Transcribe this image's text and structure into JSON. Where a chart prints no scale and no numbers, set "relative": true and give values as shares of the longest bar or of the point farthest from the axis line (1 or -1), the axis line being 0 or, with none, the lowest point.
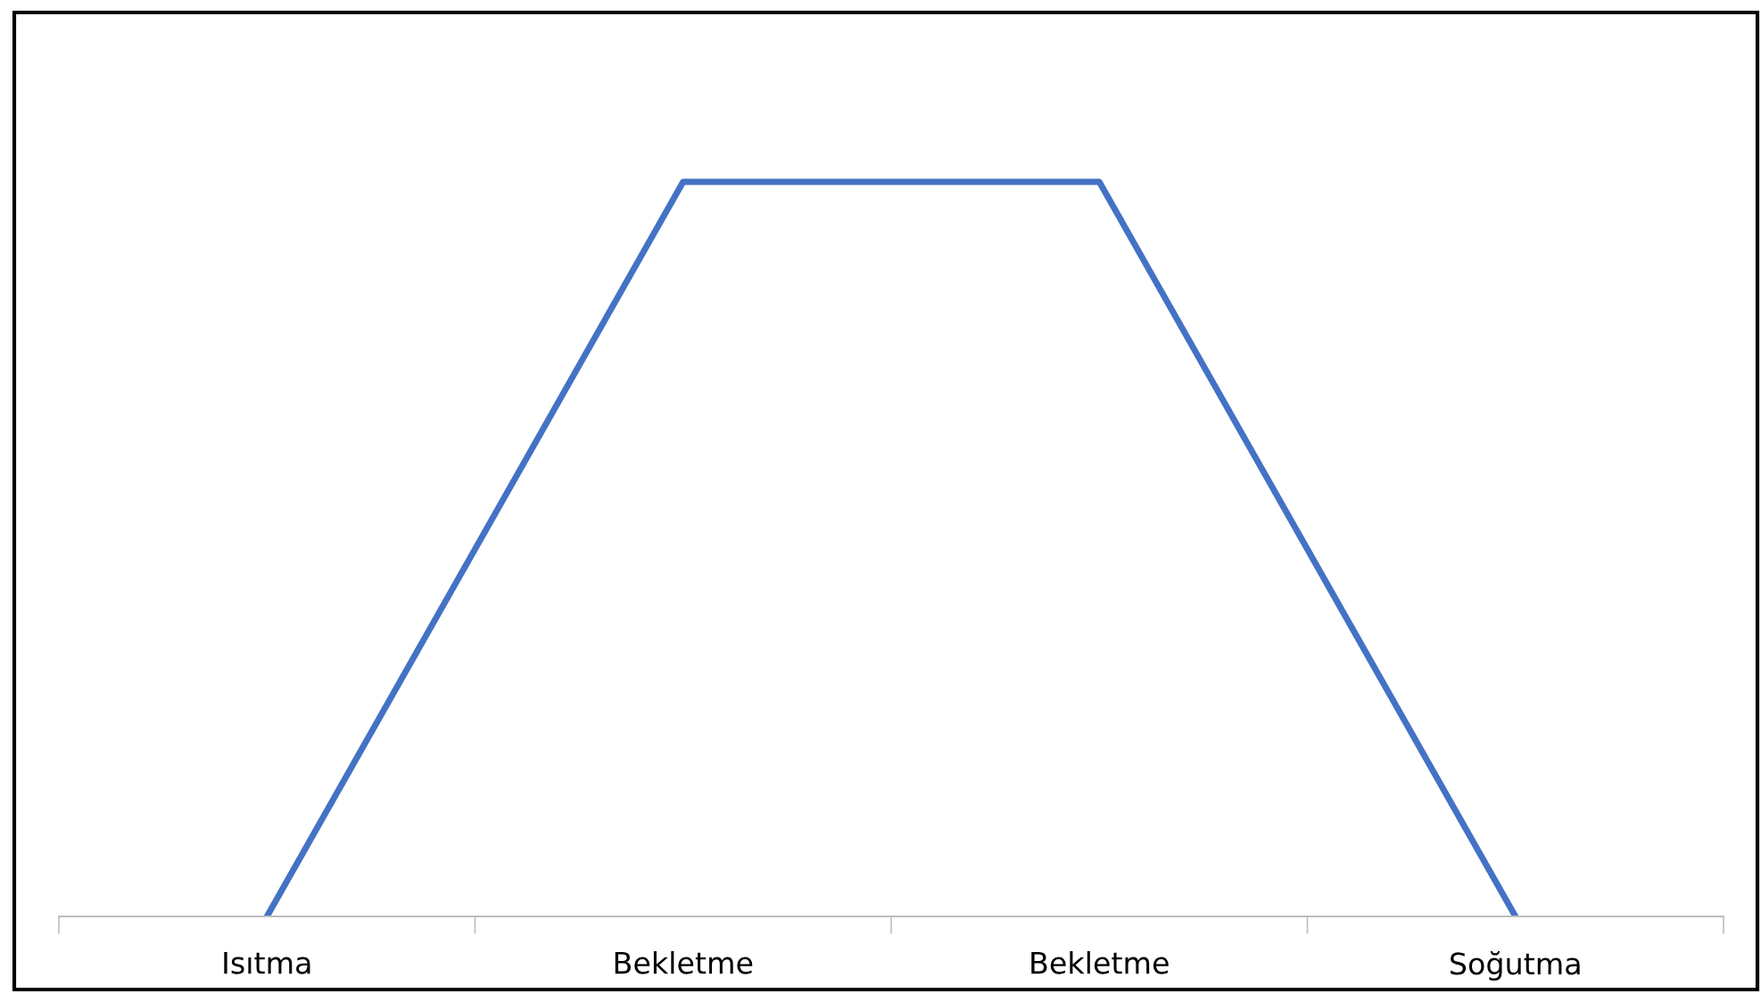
{
  "chart_data": {
    "type": "line",
    "relative": true,
    "categories": [
      "Isıtma",
      "Bekletme",
      "Bekletme",
      "Soğutma"
    ],
    "series": [
      {
        "color": "#4472c4",
        "values": [
          0,
          1,
          1,
          0
        ]
      }
    ],
    "marker": "none",
    "line_style": "solid"
  }
}
